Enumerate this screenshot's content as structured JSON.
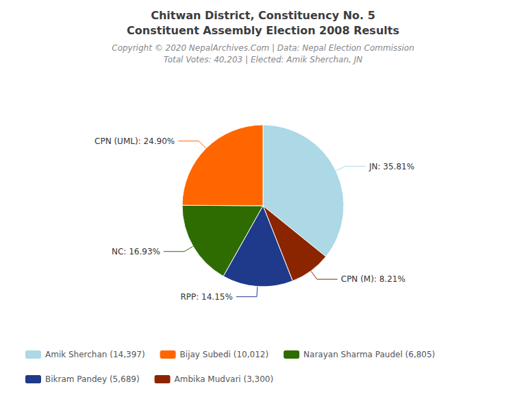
{
  "chart_data": {
    "type": "pie",
    "title": "Chitwan District, Constituency No. 5",
    "subtitle": "Constituent Assembly Election 2008 Results",
    "annotations": [
      "Copyright © 2020 NepalArchives.Com | Data: Nepal Election Commission",
      "Total Votes: 40,203 | Elected: Amik Sherchan, JN"
    ],
    "categories": [
      "JN",
      "CPN (M)",
      "RPP",
      "NC",
      "CPN (UML)"
    ],
    "values": [
      35.81,
      8.21,
      14.15,
      16.93,
      24.9
    ],
    "value_labels": [
      "JN: 35.81%",
      "CPN (M): 8.21%",
      "RPP: 14.15%",
      "NC: 16.93%",
      "CPN (UML): 24.90%"
    ],
    "colors": [
      "#ADD8E6",
      "#8B2500",
      "#1F3A8A",
      "#2E6B00",
      "#FF6600"
    ],
    "data_labels": true,
    "legend": "lower left",
    "legend_entries": [
      {
        "text": "Amik Sherchan (14,397)",
        "color": "#ADD8E6"
      },
      {
        "text": "Bijay Subedi (10,012)",
        "color": "#FF6600"
      },
      {
        "text": "Narayan Sharma Paudel (6,805)",
        "color": "#2E6B00"
      },
      {
        "text": "Bikram Pandey (5,689)",
        "color": "#1F3A8A"
      },
      {
        "text": "Ambika Mudvari (3,300)",
        "color": "#8B2500"
      }
    ]
  }
}
